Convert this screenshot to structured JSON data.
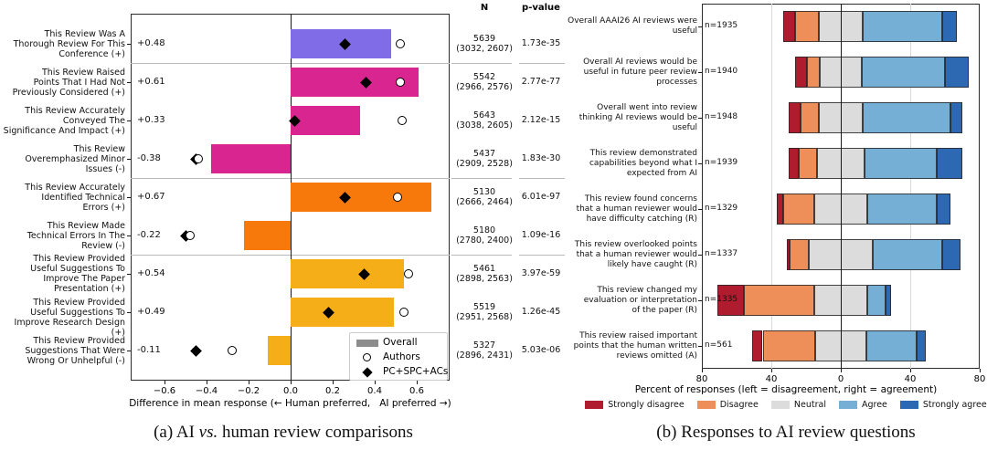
{
  "figure": {
    "caption_a": {
      "prefix": "(a) AI ",
      "italic": "vs.",
      "suffix": " human review comparisons"
    },
    "caption_b": "(b) Responses to AI review questions"
  },
  "chart_data": [
    {
      "panel": "a",
      "type": "bar",
      "orientation": "horizontal",
      "xlabel": "Difference in mean response (← Human preferred,   AI preferred →)",
      "xticks": [
        -0.6,
        -0.4,
        -0.2,
        0.0,
        0.2,
        0.4,
        0.6
      ],
      "xtick_labels": [
        "−0.6",
        "−0.4",
        "−0.2",
        "0.0",
        "0.2",
        "0.4",
        "0.6"
      ],
      "xlim": [
        -0.76,
        0.76
      ],
      "grid": false,
      "column_headers": {
        "n": "N",
        "p": "p-value"
      },
      "legend": [
        {
          "label": "Overall",
          "marker": "bar-swatch",
          "color": "#8c8c8c"
        },
        {
          "label": "Authors",
          "marker": "open-circle"
        },
        {
          "label": "PC+SPC+ACs",
          "marker": "filled-diamond"
        }
      ],
      "group_separators_after_rows": [
        1,
        4,
        6
      ],
      "rows": [
        {
          "label_lines": [
            "This Review Was A",
            "Thorough Review For This",
            "Conference (+)"
          ],
          "overall": 0.48,
          "overall_label": "+0.48",
          "authors": 0.52,
          "pc_spc_acs": 0.26,
          "color": "#7f6ce6",
          "n_total": "5639",
          "n_breakdown": "(3032, 2607)",
          "p_value": "1.73e-35"
        },
        {
          "label_lines": [
            "This Review Raised",
            "Points That I Had Not",
            "Previously Considered (+)"
          ],
          "overall": 0.61,
          "overall_label": "+0.61",
          "authors": 0.52,
          "pc_spc_acs": 0.36,
          "color": "#d9258f",
          "n_total": "5542",
          "n_breakdown": "(2966, 2576)",
          "p_value": "2.77e-77"
        },
        {
          "label_lines": [
            "This Review Accurately",
            "Conveyed The",
            "Significance And Impact (+)"
          ],
          "overall": 0.33,
          "overall_label": "+0.33",
          "authors": 0.53,
          "pc_spc_acs": 0.02,
          "color": "#d9258f",
          "n_total": "5643",
          "n_breakdown": "(3038, 2605)",
          "p_value": "2.12e-15"
        },
        {
          "label_lines": [
            "This Review",
            "Overemphasized Minor",
            "Issues (-)"
          ],
          "overall": -0.38,
          "overall_label": "-0.38",
          "authors": -0.44,
          "pc_spc_acs": -0.45,
          "color": "#d9258f",
          "n_total": "5437",
          "n_breakdown": "(2909, 2528)",
          "p_value": "1.83e-30"
        },
        {
          "label_lines": [
            "This Review Accurately",
            "Identified Technical",
            "Errors (+)"
          ],
          "overall": 0.67,
          "overall_label": "+0.67",
          "authors": 0.51,
          "pc_spc_acs": 0.26,
          "color": "#f8790b",
          "n_total": "5130",
          "n_breakdown": "(2666, 2464)",
          "p_value": "6.01e-97"
        },
        {
          "label_lines": [
            "This Review Made",
            "Technical Errors In The",
            "Review (-)"
          ],
          "overall": -0.22,
          "overall_label": "-0.22",
          "authors": -0.48,
          "pc_spc_acs": -0.5,
          "color": "#f8790b",
          "n_total": "5180",
          "n_breakdown": "(2780, 2400)",
          "p_value": "1.09e-16"
        },
        {
          "label_lines": [
            "This Review Provided",
            "Useful Suggestions To",
            "Improve The Paper",
            "Presentation (+)"
          ],
          "overall": 0.54,
          "overall_label": "+0.54",
          "authors": 0.56,
          "pc_spc_acs": 0.35,
          "color": "#f5ad18",
          "n_total": "5461",
          "n_breakdown": "(2898, 2563)",
          "p_value": "3.97e-59"
        },
        {
          "label_lines": [
            "This Review Provided",
            "Useful Suggestions To",
            "Improve Research Design (+)"
          ],
          "overall": 0.49,
          "overall_label": "+0.49",
          "authors": 0.54,
          "pc_spc_acs": 0.18,
          "color": "#f5ad18",
          "n_total": "5519",
          "n_breakdown": "(2951, 2568)",
          "p_value": "1.26e-45"
        },
        {
          "label_lines": [
            "This Review Provided",
            "Suggestions That Were",
            "Wrong Or Unhelpful (-)"
          ],
          "overall": -0.11,
          "overall_label": "-0.11",
          "authors": -0.28,
          "pc_spc_acs": -0.45,
          "color": "#f5ad18",
          "n_total": "5327",
          "n_breakdown": "(2896, 2431)",
          "p_value": "5.03e-06"
        }
      ]
    },
    {
      "panel": "b",
      "type": "diverging_stacked_bar",
      "xlabel": "Percent of responses (left = disagreement, right = agreement)",
      "xticks": [
        -80,
        -40,
        0,
        40,
        80
      ],
      "xtick_labels": [
        "80",
        "40",
        "0",
        "40",
        "80"
      ],
      "xlim": [
        -80,
        80
      ],
      "grid": true,
      "legend": [
        {
          "label": "Strongly disagree",
          "color": "#ae1c2e"
        },
        {
          "label": "Disagree",
          "color": "#ee8f5a"
        },
        {
          "label": "Neutral",
          "color": "#dcdcdc"
        },
        {
          "label": "Agree",
          "color": "#76afd6"
        },
        {
          "label": "Strongly agree",
          "color": "#2d68b2"
        }
      ],
      "rows": [
        {
          "label_lines": [
            "Overall AAAI26 AI reviews were",
            "useful"
          ],
          "n_label": "n=1935",
          "percentages": {
            "strongly_disagree": 7,
            "disagree": 13.5,
            "neutral": 25.5,
            "agree": 45.5,
            "strongly_agree": 8.5
          }
        },
        {
          "label_lines": [
            "Overall AI reviews would be",
            "useful in future peer review",
            "processes"
          ],
          "n_label": "n=1940",
          "percentages": {
            "strongly_disagree": 7,
            "disagree": 7,
            "neutral": 24.5,
            "agree": 48,
            "strongly_agree": 13.5
          }
        },
        {
          "label_lines": [
            "Overall went into review",
            "thinking AI reviews would be",
            "useful"
          ],
          "n_label": "n=1948",
          "percentages": {
            "strongly_disagree": 7,
            "disagree": 10.5,
            "neutral": 25,
            "agree": 50.5,
            "strongly_agree": 7
          }
        },
        {
          "label_lines": [
            "This review demonstrated",
            "capabilities beyond what I",
            "expected from AI"
          ],
          "n_label": "n=1939",
          "percentages": {
            "strongly_disagree": 6,
            "disagree": 10.5,
            "neutral": 27.5,
            "agree": 41.5,
            "strongly_agree": 14.5
          }
        },
        {
          "label_lines": [
            "This review found concerns",
            "that a human reviewer would",
            "have difficulty catching (R)"
          ],
          "n_label": "n=1329",
          "percentages": {
            "strongly_disagree": 4,
            "disagree": 17.5,
            "neutral": 31,
            "agree": 40,
            "strongly_agree": 7.5
          }
        },
        {
          "label_lines": [
            "This review overlooked points",
            "that a human reviewer would",
            "likely have caught (R)"
          ],
          "n_label": "n=1337",
          "percentages": {
            "strongly_disagree": 2,
            "disagree": 11,
            "neutral": 36.5,
            "agree": 40,
            "strongly_agree": 10.5
          }
        },
        {
          "label_lines": [
            "This review changed my",
            "evaluation or interpretation",
            "of the paper (R)"
          ],
          "n_label": "n=1335",
          "percentages": {
            "strongly_disagree": 15,
            "disagree": 40.5,
            "neutral": 31,
            "agree": 10.5,
            "strongly_agree": 3
          }
        },
        {
          "label_lines": [
            "This review raised important",
            "points that the human written",
            "reviews omitted (A)"
          ],
          "n_label": "n=561",
          "percentages": {
            "strongly_disagree": 6,
            "disagree": 30.5,
            "neutral": 29,
            "agree": 29,
            "strongly_agree": 5.5
          }
        }
      ]
    }
  ]
}
